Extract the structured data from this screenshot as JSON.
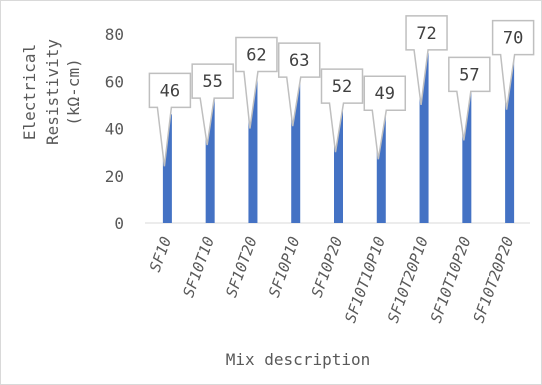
{
  "chart_data": {
    "type": "bar",
    "categories": [
      "SF10",
      "SF10T10",
      "SF10T20",
      "SF10P10",
      "SF10P20",
      "SF10T10P10",
      "SF10T20P10",
      "SF10T10P20",
      "SF10T20P20"
    ],
    "values": [
      46,
      55,
      62,
      63,
      52,
      49,
      72,
      57,
      70
    ],
    "data_labels": [
      "46",
      "55",
      "62",
      "63",
      "52",
      "49",
      "72",
      "57",
      "70"
    ],
    "y_ticks": [
      "0",
      "20",
      "40",
      "60",
      "80"
    ],
    "xlabel": "Mix description",
    "ylabel_lines": [
      "Electrical",
      "Resistivity",
      "(kΩ-cm)"
    ],
    "ylim": [
      0,
      80
    ],
    "grid": false,
    "legend": "none",
    "bar_color": "#4472C4",
    "callout_border_color": "#BFBFBF"
  }
}
